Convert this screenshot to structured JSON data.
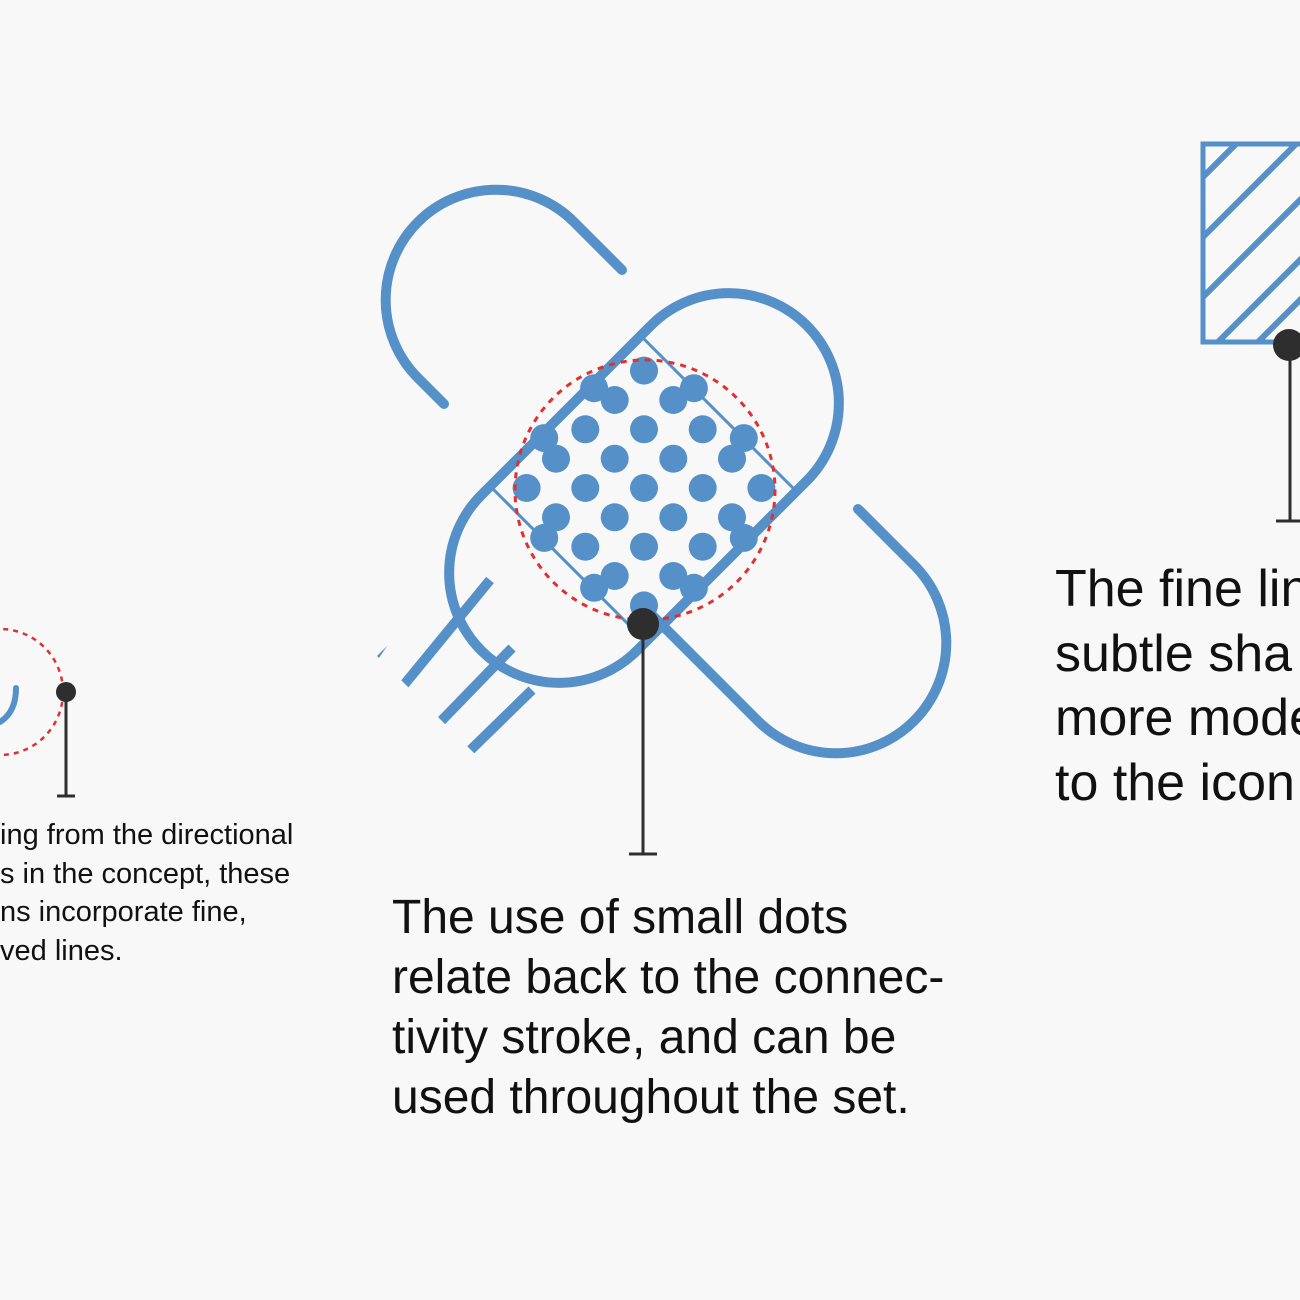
{
  "colors": {
    "background": "#f8f8f8",
    "icon_stroke": "#5590c8",
    "dot_fill": "#5590c8",
    "highlight_circle": "#e03030",
    "marker": "#2e2e2e",
    "text": "#111111"
  },
  "captions": {
    "left": [
      "ing from the directional",
      "s in the concept, these",
      "ns incorporate fine,",
      "ved lines."
    ],
    "center": [
      "The use of small dots",
      "relate back to the connec-",
      "tivity stroke, and can be",
      "used throughout the set."
    ],
    "right": [
      "The fine lin",
      "subtle sha",
      "more mode",
      "to the icon"
    ]
  },
  "icons": {
    "main": "crossed-bandage-icon",
    "right": "hatched-square-icon",
    "left": "curved-line-icon"
  }
}
